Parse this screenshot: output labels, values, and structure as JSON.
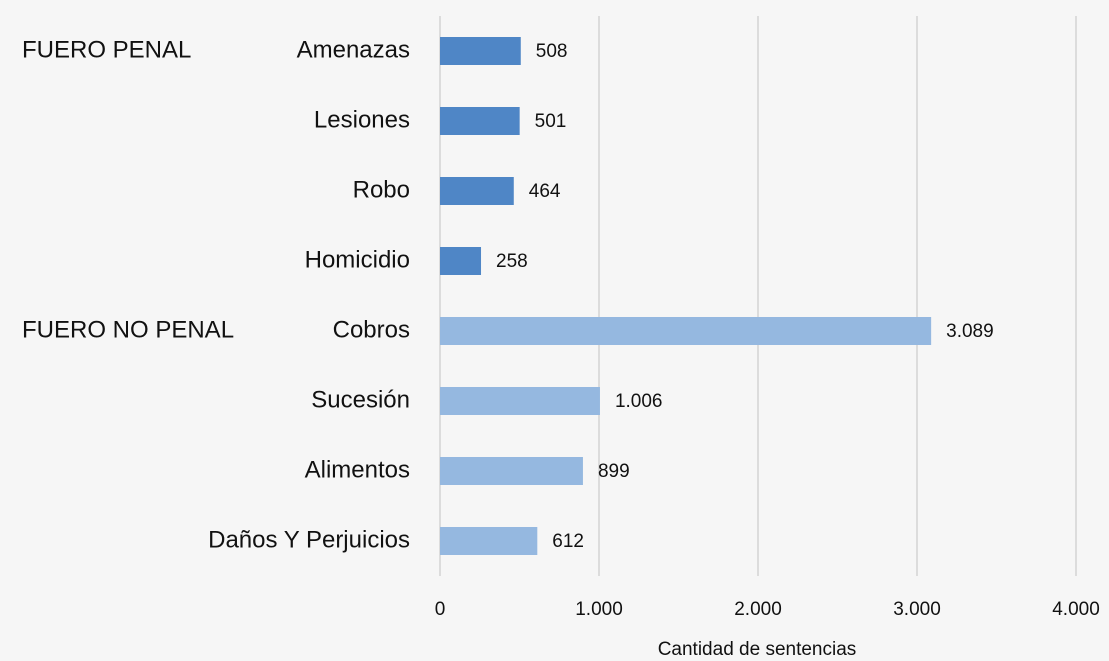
{
  "chart_data": {
    "type": "bar",
    "orientation": "horizontal",
    "xlabel": "Cantidad de sentencias",
    "xlim": [
      0,
      4000
    ],
    "xticks": [
      0,
      {
        "value": 1000,
        "label": "1.000"
      },
      {
        "value": 2000,
        "label": "2.000"
      },
      {
        "value": 3000,
        "label": "3.000"
      },
      {
        "value": 4000,
        "label": "4.000"
      }
    ],
    "grid": true,
    "groups": [
      {
        "name": "FUERO PENAL",
        "color": "#4f86c6",
        "categories": [
          "Amenazas",
          "Lesiones",
          "Robo",
          "Homicidio"
        ],
        "values": [
          508,
          501,
          464,
          258
        ]
      },
      {
        "name": "FUERO NO PENAL",
        "color": "#95b8e0",
        "categories": [
          "Cobros",
          "Sucesión",
          "Alimentos",
          "Daños Y Perjuicios"
        ],
        "values": [
          3089,
          1006,
          899,
          612
        ],
        "value_labels": [
          "3.089",
          "1.006",
          "899",
          "612"
        ]
      }
    ]
  }
}
